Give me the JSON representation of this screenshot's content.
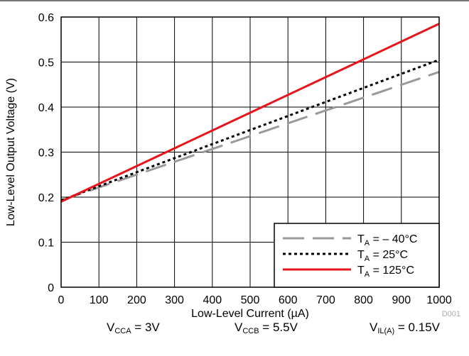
{
  "chart_data": {
    "type": "line",
    "title": "",
    "xlabel": "Low-Level Current (µA)",
    "ylabel": "Low-Level Output Voltage (V)",
    "xlim": [
      0,
      1000
    ],
    "ylim": [
      0,
      0.6
    ],
    "xticks": [
      "0",
      "100",
      "200",
      "300",
      "400",
      "500",
      "600",
      "700",
      "800",
      "900",
      "1000"
    ],
    "yticks": [
      "0",
      "0.1",
      "0.2",
      "0.3",
      "0.4",
      "0.5",
      "0.6"
    ],
    "grid": true,
    "legend_position": "bottom-right",
    "series": [
      {
        "name": "T_A = – 40°C",
        "label_main": "T",
        "label_sub": "A",
        "label_rest": " = – 40°C",
        "style": "dashed",
        "color": "#999999",
        "x": [
          0,
          1000
        ],
        "values": [
          0.193,
          0.478
        ]
      },
      {
        "name": "T_A = 25°C",
        "label_main": "T",
        "label_sub": "A",
        "label_rest": " = 25°C",
        "style": "dotted",
        "color": "#000000",
        "x": [
          0,
          1000
        ],
        "values": [
          0.193,
          0.505
        ]
      },
      {
        "name": "T_A = 125°C",
        "label_main": "T",
        "label_sub": "A",
        "label_rest": " = 125°C",
        "style": "solid",
        "color": "#e8141b",
        "x": [
          0,
          1000
        ],
        "values": [
          0.19,
          0.585
        ]
      }
    ],
    "figure_id": "D001"
  },
  "conditions": [
    {
      "main": "V",
      "sub": "CCA",
      "rest": " = 3V"
    },
    {
      "main": "V",
      "sub": "CCB",
      "rest": " = 5.5V"
    },
    {
      "main": "V",
      "sub": "IL(A)",
      "rest": " = 0.15V"
    }
  ]
}
